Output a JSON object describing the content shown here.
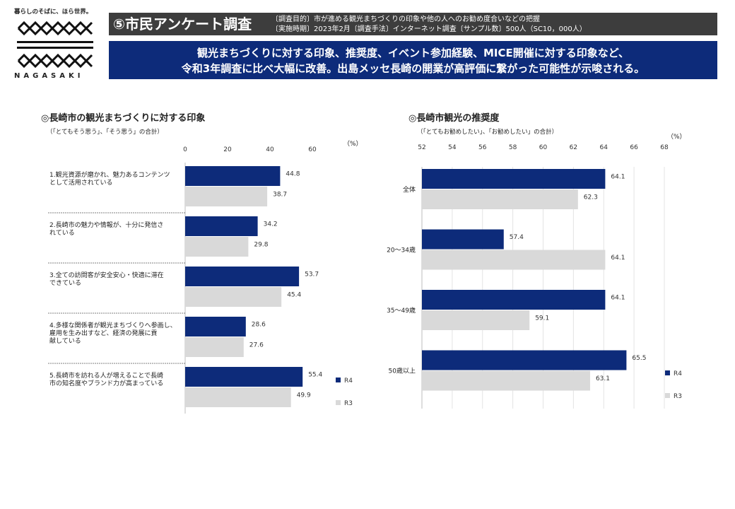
{
  "logo": {
    "slogan": "暮らしのそばに、ほら世界。",
    "wordmark": "NAGASAKI"
  },
  "header": {
    "title": "⑤市民アンケート調査",
    "meta_line1": "〔調査目的〕市が進める観光まちづくりの印象や他の人へのお勧め度合いなどの把握",
    "meta_line2": "〔実施時期〕2023年2月〔調査手法〕インターネット調査〔サンプル数〕500人（SC10，000人）"
  },
  "banner": {
    "line1": "観光まちづくりに対する印象、推奨度、イベント参加経験、MICE開催に対する印象など、",
    "line2": "令和3年調査に比べ大幅に改善。出島メッセ長崎の開業が高評価に繋がった可能性が示唆される。"
  },
  "colors": {
    "r4": "#0d2b7a",
    "r3": "#d9d9d9",
    "banner": "#0d2b7a",
    "title_bg": "#3d3d3d"
  },
  "chart_data": [
    {
      "type": "bar",
      "orientation": "horizontal",
      "title": "◎長崎市の観光まちづくりに対する印象",
      "subtitle": "（「とてもそう思う」、「そう思う」の合計）",
      "unit": "（%）",
      "xlim": [
        0,
        60
      ],
      "ticks": [
        0,
        20,
        40,
        60
      ],
      "categories": [
        [
          "1.観光資源が磨かれ、魅力あるコンテンツ",
          "として活用されている"
        ],
        [
          "2.長崎市の魅力や情報が、十分に発信さ",
          "れている"
        ],
        [
          "3.全ての訪問客が安全安心・快適に滞在",
          "できている"
        ],
        [
          "4.多様な関係者が観光まちづくりへ参画し、",
          "雇用を生み出すなど、経済の発展に貢",
          "献している"
        ],
        [
          "5.長崎市を訪れる人が増えることで長崎",
          "市の知名度やブランド力が高まっている"
        ]
      ],
      "series": [
        {
          "name": "R4",
          "values": [
            44.8,
            34.2,
            53.7,
            28.6,
            55.4
          ]
        },
        {
          "name": "R3",
          "values": [
            38.7,
            29.8,
            45.4,
            27.6,
            49.9
          ]
        }
      ],
      "legend": "right-bottom",
      "grid": false
    },
    {
      "type": "bar",
      "orientation": "horizontal",
      "title": "◎長崎市観光の推奨度",
      "subtitle": "（「とてもお勧めしたい」、「お勧めしたい」の合計）",
      "unit": "（%）",
      "xlim": [
        52,
        68
      ],
      "ticks": [
        52,
        54,
        56,
        58,
        60,
        62,
        64,
        66,
        68
      ],
      "categories": [
        [
          "全体"
        ],
        [
          "20～34歳"
        ],
        [
          "35～49歳"
        ],
        [
          "50歳以上"
        ]
      ],
      "series": [
        {
          "name": "R4",
          "values": [
            64.1,
            57.4,
            64.1,
            65.5
          ]
        },
        {
          "name": "R3",
          "values": [
            62.3,
            64.1,
            59.1,
            63.1
          ]
        }
      ],
      "legend": "right-bottom",
      "grid": true
    }
  ]
}
